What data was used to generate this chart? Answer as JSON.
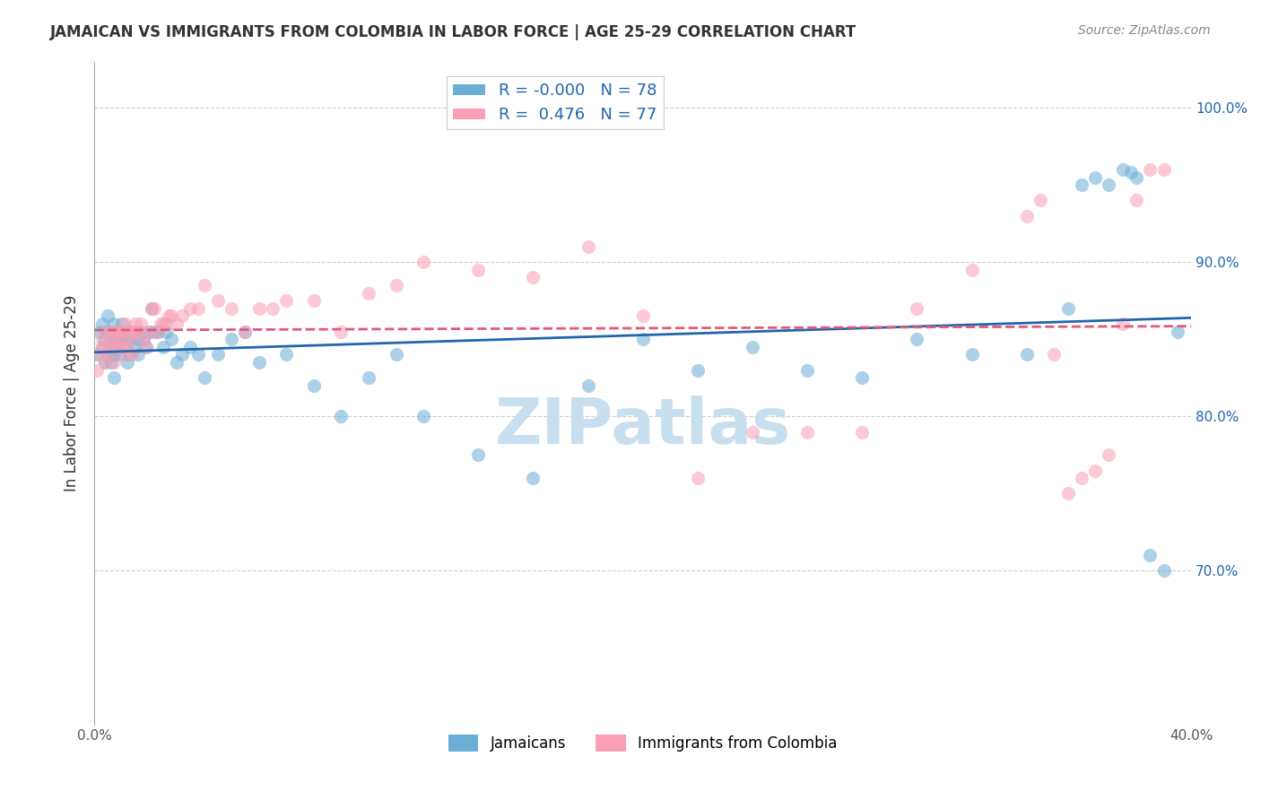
{
  "title": "JAMAICAN VS IMMIGRANTS FROM COLOMBIA IN LABOR FORCE | AGE 25-29 CORRELATION CHART",
  "source": "Source: ZipAtlas.com",
  "xlabel": "",
  "ylabel": "In Labor Force | Age 25-29",
  "xlim": [
    0.0,
    0.4
  ],
  "ylim": [
    0.6,
    1.03
  ],
  "yticks": [
    0.7,
    0.8,
    0.9,
    1.0
  ],
  "ytick_labels": [
    "70.0%",
    "80.0%",
    "90.0%",
    "100.0%"
  ],
  "xticks": [
    0.0,
    0.05,
    0.1,
    0.15,
    0.2,
    0.25,
    0.3,
    0.35,
    0.4
  ],
  "xtick_labels": [
    "0.0%",
    "",
    "",
    "",
    "",
    "",
    "",
    "",
    "40.0%"
  ],
  "legend_labels": [
    "Jamaicans",
    "Immigrants from Colombia"
  ],
  "R_jamaican": -0.0,
  "N_jamaican": 78,
  "R_colombia": 0.476,
  "N_colombia": 77,
  "color_jamaican": "#6baed6",
  "color_colombia": "#fa9fb5",
  "trendline_jamaican_color": "#2166ac",
  "trendline_colombia_color": "#e05a7a",
  "background_color": "#ffffff",
  "watermark_text": "ZIPatlas",
  "watermark_color": "#c8dff0",
  "jamaican_x": [
    0.001,
    0.002,
    0.003,
    0.003,
    0.004,
    0.004,
    0.005,
    0.005,
    0.005,
    0.006,
    0.006,
    0.006,
    0.007,
    0.007,
    0.007,
    0.008,
    0.008,
    0.009,
    0.009,
    0.01,
    0.01,
    0.011,
    0.011,
    0.012,
    0.012,
    0.013,
    0.013,
    0.014,
    0.015,
    0.015,
    0.016,
    0.016,
    0.017,
    0.018,
    0.019,
    0.02,
    0.021,
    0.022,
    0.023,
    0.025,
    0.026,
    0.028,
    0.03,
    0.032,
    0.035,
    0.038,
    0.04,
    0.045,
    0.05,
    0.055,
    0.06,
    0.07,
    0.08,
    0.09,
    0.1,
    0.11,
    0.12,
    0.14,
    0.16,
    0.18,
    0.2,
    0.22,
    0.24,
    0.26,
    0.28,
    0.3,
    0.32,
    0.34,
    0.355,
    0.36,
    0.365,
    0.37,
    0.375,
    0.378,
    0.38,
    0.385,
    0.39,
    0.395
  ],
  "jamaican_y": [
    0.84,
    0.855,
    0.86,
    0.845,
    0.85,
    0.835,
    0.855,
    0.865,
    0.84,
    0.845,
    0.85,
    0.835,
    0.86,
    0.84,
    0.825,
    0.855,
    0.845,
    0.85,
    0.84,
    0.855,
    0.86,
    0.845,
    0.85,
    0.855,
    0.835,
    0.85,
    0.84,
    0.855,
    0.845,
    0.855,
    0.85,
    0.84,
    0.855,
    0.85,
    0.845,
    0.855,
    0.87,
    0.855,
    0.855,
    0.845,
    0.855,
    0.85,
    0.835,
    0.84,
    0.845,
    0.84,
    0.825,
    0.84,
    0.85,
    0.855,
    0.835,
    0.84,
    0.82,
    0.8,
    0.825,
    0.84,
    0.8,
    0.775,
    0.76,
    0.82,
    0.85,
    0.83,
    0.845,
    0.83,
    0.825,
    0.85,
    0.84,
    0.84,
    0.87,
    0.95,
    0.955,
    0.95,
    0.96,
    0.958,
    0.955,
    0.71,
    0.7,
    0.855
  ],
  "colombia_x": [
    0.001,
    0.002,
    0.003,
    0.003,
    0.004,
    0.004,
    0.005,
    0.005,
    0.006,
    0.006,
    0.007,
    0.007,
    0.008,
    0.008,
    0.009,
    0.009,
    0.01,
    0.01,
    0.011,
    0.011,
    0.012,
    0.012,
    0.013,
    0.013,
    0.014,
    0.015,
    0.015,
    0.016,
    0.017,
    0.018,
    0.019,
    0.02,
    0.021,
    0.022,
    0.023,
    0.024,
    0.025,
    0.026,
    0.027,
    0.028,
    0.03,
    0.032,
    0.035,
    0.038,
    0.04,
    0.045,
    0.05,
    0.055,
    0.06,
    0.065,
    0.07,
    0.08,
    0.09,
    0.1,
    0.11,
    0.12,
    0.14,
    0.16,
    0.18,
    0.2,
    0.22,
    0.24,
    0.26,
    0.28,
    0.3,
    0.32,
    0.34,
    0.345,
    0.35,
    0.355,
    0.36,
    0.365,
    0.37,
    0.375,
    0.38,
    0.385,
    0.39
  ],
  "colombia_y": [
    0.83,
    0.84,
    0.85,
    0.845,
    0.835,
    0.855,
    0.845,
    0.84,
    0.85,
    0.855,
    0.845,
    0.835,
    0.855,
    0.845,
    0.855,
    0.85,
    0.845,
    0.855,
    0.86,
    0.84,
    0.855,
    0.845,
    0.855,
    0.85,
    0.84,
    0.86,
    0.855,
    0.855,
    0.86,
    0.85,
    0.845,
    0.855,
    0.87,
    0.87,
    0.855,
    0.86,
    0.86,
    0.86,
    0.865,
    0.865,
    0.86,
    0.865,
    0.87,
    0.87,
    0.885,
    0.875,
    0.87,
    0.855,
    0.87,
    0.87,
    0.875,
    0.875,
    0.855,
    0.88,
    0.885,
    0.9,
    0.895,
    0.89,
    0.91,
    0.865,
    0.76,
    0.79,
    0.79,
    0.79,
    0.87,
    0.895,
    0.93,
    0.94,
    0.84,
    0.75,
    0.76,
    0.765,
    0.775,
    0.86,
    0.94,
    0.96,
    0.96
  ]
}
